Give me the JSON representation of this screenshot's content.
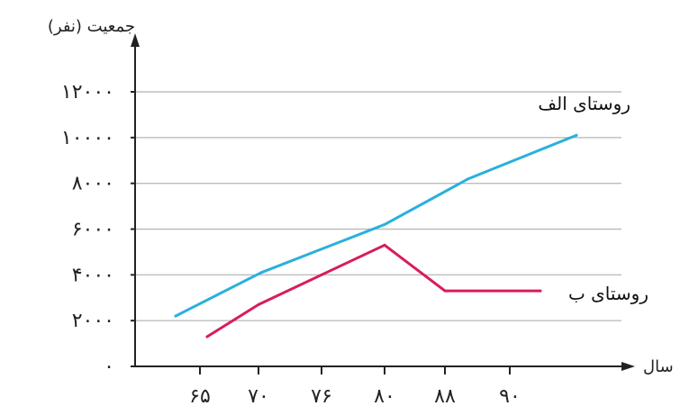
{
  "chart_data": {
    "type": "line",
    "xlabel": "سال",
    "ylabel": "جمعیت (نفر)",
    "x_ticks": [
      "۶۵",
      "۷۰",
      "۷۶",
      "۸۰",
      "۸۸",
      "۹۰"
    ],
    "y_ticks": [
      {
        "value": 0,
        "label": "۰"
      },
      {
        "value": 2000,
        "label": "۲۰۰۰"
      },
      {
        "value": 4000,
        "label": "۴۰۰۰"
      },
      {
        "value": 6000,
        "label": "۶۰۰۰"
      },
      {
        "value": 8000,
        "label": "۸۰۰۰"
      },
      {
        "value": 10000,
        "label": "۱۰۰۰۰"
      },
      {
        "value": 12000,
        "label": "۱۲۰۰۰"
      }
    ],
    "ylim": [
      0,
      12000
    ],
    "grid": true,
    "series": [
      {
        "name": "روستای الف",
        "color": "#2ab0dc",
        "points": [
          {
            "x": "۶۵",
            "y": 2200
          },
          {
            "x": "۷۶",
            "y": 4100
          },
          {
            "x": "۸۰",
            "y": 6200
          },
          {
            "x": "۸۸",
            "y": 8200
          },
          {
            "x": "۹۰",
            "y": 10100
          }
        ]
      },
      {
        "name": "روستای ب",
        "color": "#d81b5f",
        "points": [
          {
            "x": "۶۵",
            "y": 1300
          },
          {
            "x": "۷۰",
            "y": 2700
          },
          {
            "x": "۷۶",
            "y": 4000
          },
          {
            "x": "۸۰",
            "y": 5300
          },
          {
            "x": "۸۸",
            "y": 3300
          },
          {
            "x": "۹۰",
            "y": 3300
          }
        ]
      }
    ]
  }
}
